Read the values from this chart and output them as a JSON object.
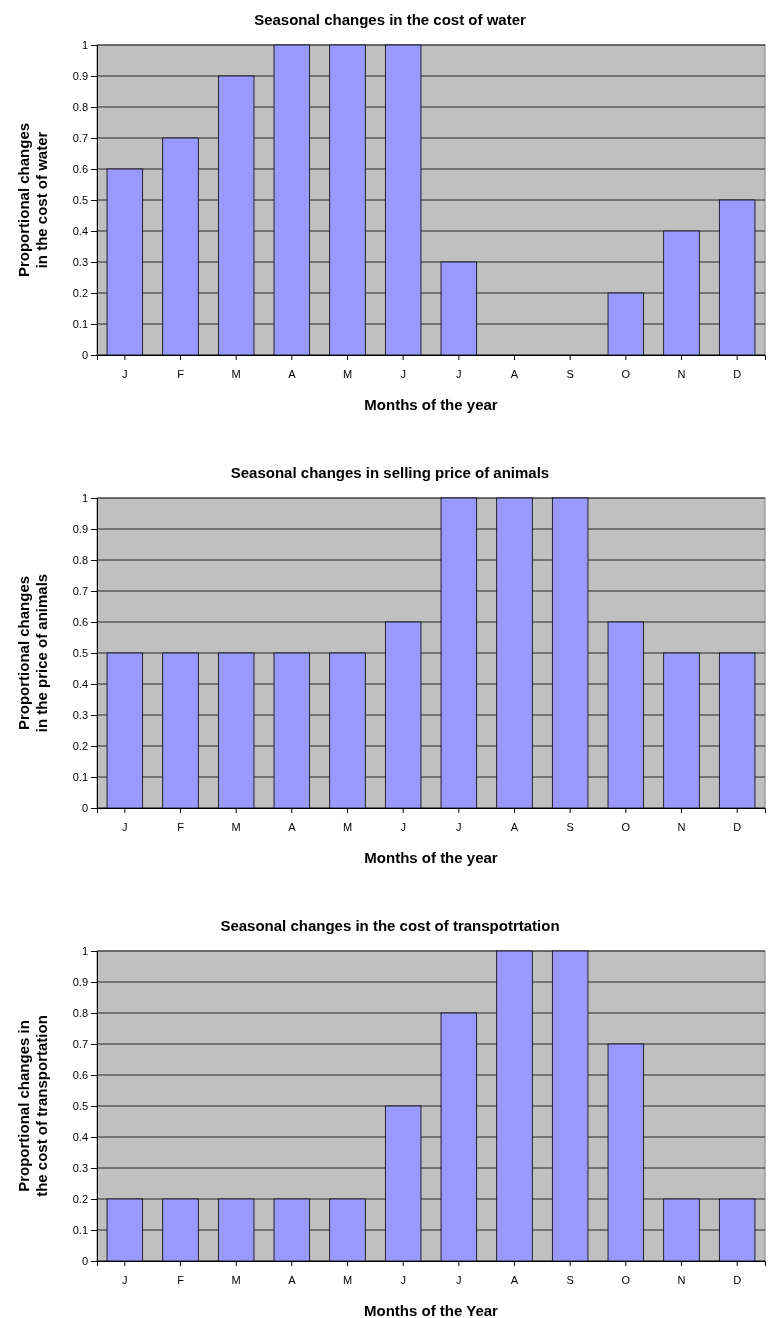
{
  "chart_data": [
    {
      "type": "bar",
      "title": "Seasonal changes in the cost of water",
      "xlabel": "Months of the year",
      "ylabel": "Proportional changes in the cost of water",
      "categories": [
        "J",
        "F",
        "M",
        "A",
        "M",
        "J",
        "J",
        "A",
        "S",
        "O",
        "N",
        "D"
      ],
      "values": [
        0.6,
        0.7,
        0.9,
        1,
        1,
        1,
        0.3,
        0,
        0,
        0.2,
        0.4,
        0.5
      ],
      "color": "#9999ff",
      "ylim": [
        0,
        1
      ],
      "yticks": [
        0,
        0.1,
        0.2,
        0.3,
        0.4,
        0.5,
        0.6,
        0.7,
        0.8,
        0.9,
        1
      ],
      "grid": "y"
    },
    {
      "type": "bar",
      "title": "Seasonal changes in selling price of animals",
      "xlabel": "Months of the year",
      "ylabel": "Proportional changes in the price of animals",
      "categories": [
        "J",
        "F",
        "M",
        "A",
        "M",
        "J",
        "J",
        "A",
        "S",
        "O",
        "N",
        "D"
      ],
      "values": [
        0.5,
        0.5,
        0.5,
        0.5,
        0.5,
        0.6,
        1,
        1,
        1,
        0.6,
        0.5,
        0.5
      ],
      "color": "#9999ff",
      "ylim": [
        0,
        1
      ],
      "yticks": [
        0,
        0.1,
        0.2,
        0.3,
        0.4,
        0.5,
        0.6,
        0.7,
        0.8,
        0.9,
        1
      ],
      "grid": "y"
    },
    {
      "type": "bar",
      "title": "Seasonal changes in the cost of transpotrtation",
      "xlabel": "Months of the Year",
      "ylabel": "Proportional changes in the cost of transportation",
      "categories": [
        "J",
        "F",
        "M",
        "A",
        "M",
        "J",
        "J",
        "A",
        "S",
        "O",
        "N",
        "D"
      ],
      "values": [
        0.2,
        0.2,
        0.2,
        0.2,
        0.2,
        0.5,
        0.8,
        1,
        1,
        0.7,
        0.2,
        0.2
      ],
      "color": "#9999ff",
      "ylim": [
        0,
        1
      ],
      "yticks": [
        0,
        0.1,
        0.2,
        0.3,
        0.4,
        0.5,
        0.6,
        0.7,
        0.8,
        0.9,
        1
      ],
      "grid": "y"
    }
  ]
}
